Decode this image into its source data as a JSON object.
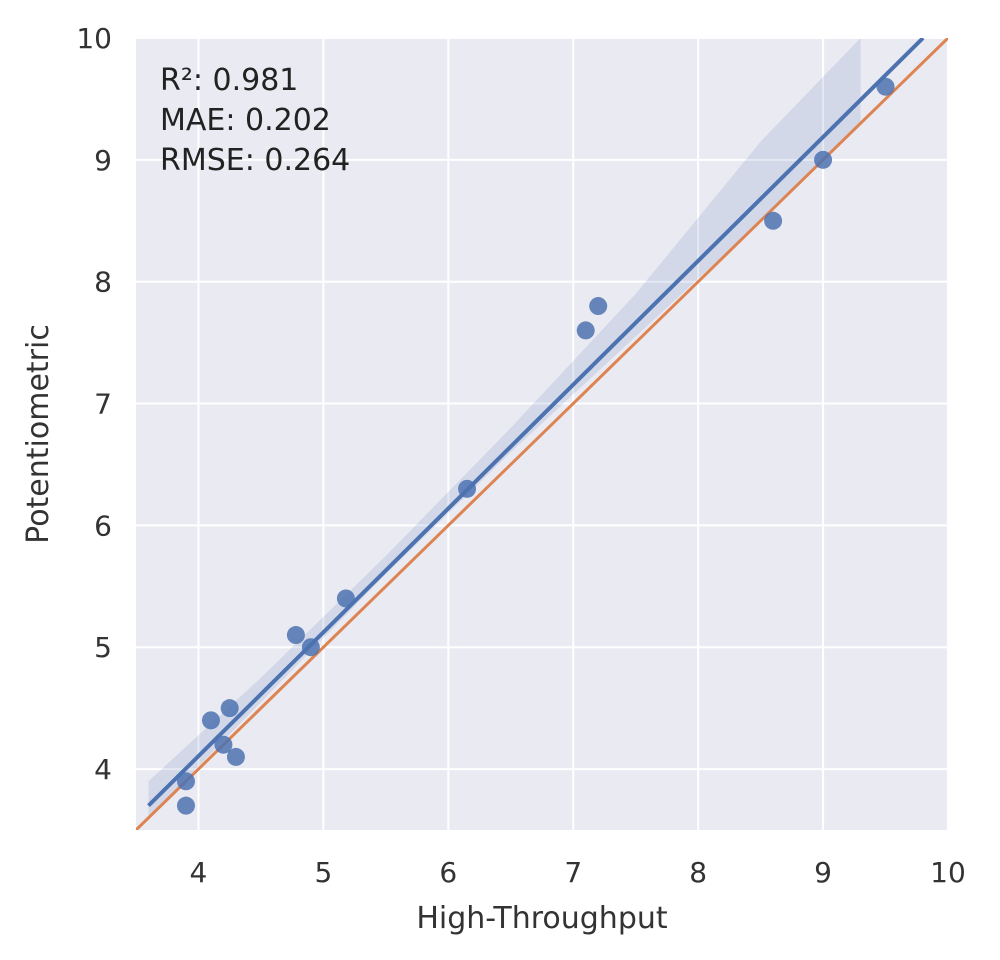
{
  "chart_data": {
    "type": "scatter",
    "xlabel": "High-Throughput",
    "ylabel": "Potentiometric",
    "xlim": [
      3.5,
      10
    ],
    "ylim": [
      3.5,
      10
    ],
    "x_ticks": [
      4,
      5,
      6,
      7,
      8,
      9,
      10
    ],
    "y_ticks": [
      4,
      5,
      6,
      7,
      8,
      9,
      10
    ],
    "grid": true,
    "annotations": [
      "R²: 0.981",
      "MAE: 0.202",
      "RMSE: 0.264"
    ],
    "points": [
      {
        "x": 3.9,
        "y": 3.7
      },
      {
        "x": 3.9,
        "y": 3.9
      },
      {
        "x": 4.1,
        "y": 4.4
      },
      {
        "x": 4.2,
        "y": 4.2
      },
      {
        "x": 4.25,
        "y": 4.5
      },
      {
        "x": 4.3,
        "y": 4.1
      },
      {
        "x": 4.78,
        "y": 5.1
      },
      {
        "x": 4.9,
        "y": 5.0
      },
      {
        "x": 5.18,
        "y": 5.4
      },
      {
        "x": 6.15,
        "y": 6.3
      },
      {
        "x": 7.1,
        "y": 7.6
      },
      {
        "x": 7.2,
        "y": 7.8
      },
      {
        "x": 8.6,
        "y": 8.5
      },
      {
        "x": 9.0,
        "y": 9.0
      },
      {
        "x": 9.5,
        "y": 9.6
      }
    ],
    "regression_line": {
      "x": [
        3.6,
        9.8
      ],
      "y": [
        3.7,
        10.0
      ]
    },
    "confidence_band": {
      "x": [
        3.6,
        4.5,
        5.5,
        6.5,
        7.5,
        8.5,
        9.3
      ],
      "lower": [
        3.6,
        4.55,
        5.6,
        6.6,
        7.55,
        8.5,
        9.3
      ],
      "upper": [
        3.9,
        4.75,
        5.75,
        6.8,
        7.9,
        9.15,
        10.0
      ]
    },
    "identity_line": {
      "x": [
        3.5,
        10
      ],
      "y": [
        3.5,
        10
      ]
    },
    "colors": {
      "background": "#eaeaf2",
      "grid": "#ffffff",
      "points": "#4c72b0",
      "regression": "#4c72b0",
      "band": "#4c72b0",
      "identity": "#dd8452"
    }
  }
}
